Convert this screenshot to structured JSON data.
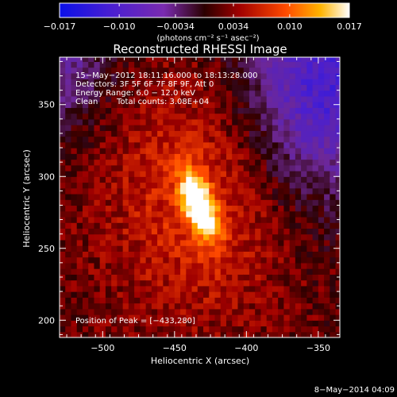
{
  "chart_data": {
    "type": "heatmap",
    "title": "Reconstructed RHESSI Image",
    "xlabel": "Heliocentric X (arcsec)",
    "ylabel": "Heliocentric Y (arcsec)",
    "xlim": [
      -530,
      -335
    ],
    "ylim": [
      188,
      383
    ],
    "x_ticks": [
      -500,
      -450,
      -400,
      -350
    ],
    "x_tick_labels": [
      "−500",
      "−450",
      "−400",
      "−350"
    ],
    "y_ticks": [
      200,
      250,
      300,
      350
    ],
    "y_tick_labels": [
      "200",
      "250",
      "300",
      "350"
    ],
    "colorbar": {
      "min": -0.017,
      "max": 0.017,
      "ticks": [
        -0.017,
        -0.01,
        -0.0034,
        0.0034,
        0.01,
        0.017
      ],
      "tick_labels": [
        "−0.017",
        "−0.010",
        "−0.0034",
        "0.0034",
        "0.010",
        "0.017"
      ],
      "units_label": "(photons cm⁻² s⁻¹ asec⁻²)"
    },
    "info": {
      "time_range": "15−May−2012 18:11:16.000 to 18:13:28.000",
      "detectors": "Detectors: 3F 5F 6F 7F 8F 9F, Att 0",
      "energy_range": "Energy Range: 6.0 − 12.0 keV",
      "clean_label": "Clean",
      "total_counts": "Total counts: 3.08E+04"
    },
    "peak_label": "Position of Peak = [−433,280]",
    "peak": [
      -433,
      280
    ],
    "peak_flux": 0.017,
    "date_stamp": "8−May−2014 04:09",
    "colors": {
      "low": "#0b10e8",
      "mid_low": "#7a2bb0",
      "zero": "#2a0000",
      "mid_high": "#ff4a00",
      "high": "#ffffff"
    }
  }
}
